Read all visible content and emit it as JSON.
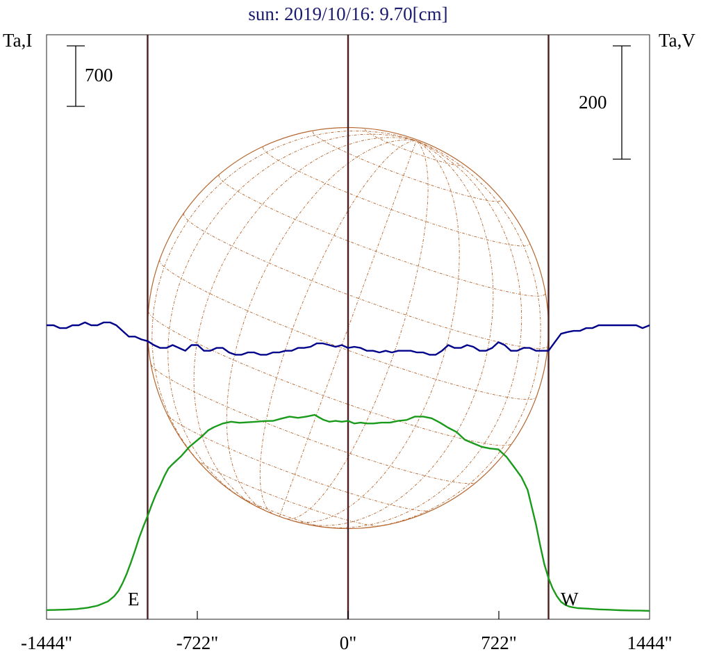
{
  "chart_data": {
    "type": "line",
    "title": "sun: 2019/10/16: 9.70[cm]",
    "left_axis_label": "Ta,I",
    "right_axis_label": "Ta,V",
    "x_unit": "arcsec",
    "xlim": [
      -1444,
      1444
    ],
    "x_tick_values": [
      -1444,
      -722,
      0,
      722,
      1444
    ],
    "x_tick_labels": [
      "-1444\"",
      "-722\"",
      "0\"",
      "722\"",
      "1444\""
    ],
    "scale_bar_left": {
      "label": "700",
      "value": 700
    },
    "scale_bar_right": {
      "label": "200",
      "value": 200
    },
    "marker_lines_x": [
      -960,
      0,
      960
    ],
    "limb_labels": {
      "east": "E",
      "west": "W"
    },
    "solar_radius_arcsec": 960,
    "colors": {
      "stokes_i": "#1a9a1a",
      "stokes_v": "#00008b",
      "markers": "#4a1e1e",
      "sun_disk": "#b5652d",
      "title": "#1a1a6e"
    },
    "series": [
      {
        "key": "stokes_i",
        "x": [
          -1444,
          -1400,
          -1350,
          -1300,
          -1250,
          -1200,
          -1150,
          -1120,
          -1100,
          -1080,
          -1060,
          -1040,
          -1020,
          -1000,
          -980,
          -960,
          -940,
          -920,
          -900,
          -880,
          -860,
          -840,
          -800,
          -760,
          -730,
          -700,
          -670,
          -640,
          -600,
          -560,
          -520,
          -480,
          -440,
          -400,
          -360,
          -320,
          -280,
          -240,
          -200,
          -160,
          -120,
          -90,
          -60,
          -30,
          0,
          30,
          60,
          90,
          120,
          160,
          200,
          240,
          280,
          320,
          360,
          400,
          440,
          480,
          520,
          560,
          600,
          640,
          680,
          720,
          760,
          800,
          830,
          860,
          880,
          900,
          920,
          940,
          960,
          980,
          1000,
          1020,
          1040,
          1060,
          1080,
          1100,
          1120,
          1150,
          1200,
          1250,
          1300,
          1350,
          1400,
          1444
        ],
        "y": [
          10,
          11,
          15,
          22,
          35,
          60,
          110,
          170,
          230,
          320,
          430,
          560,
          700,
          850,
          980,
          1100,
          1230,
          1350,
          1450,
          1560,
          1650,
          1700,
          1790,
          1900,
          1960,
          2020,
          2090,
          2130,
          2170,
          2190,
          2178,
          2184,
          2190,
          2198,
          2200,
          2226,
          2250,
          2235,
          2250,
          2270,
          2215,
          2190,
          2200,
          2190,
          2200,
          2170,
          2180,
          2170,
          2170,
          2180,
          2180,
          2200,
          2210,
          2250,
          2250,
          2230,
          2180,
          2120,
          2070,
          1980,
          1940,
          1900,
          1880,
          1870,
          1780,
          1650,
          1550,
          1400,
          1200,
          1000,
          760,
          540,
          380,
          260,
          170,
          105,
          70,
          50,
          40,
          32,
          30,
          26,
          18,
          14,
          8,
          5,
          3,
          0
        ]
      },
      {
        "key": "stokes_v",
        "x": [
          -1444,
          -1410,
          -1380,
          -1350,
          -1320,
          -1290,
          -1260,
          -1230,
          -1200,
          -1170,
          -1140,
          -1110,
          -1080,
          -1050,
          -1020,
          -990,
          -960,
          -930,
          -900,
          -870,
          -840,
          -810,
          -780,
          -750,
          -720,
          -690,
          -660,
          -630,
          -600,
          -570,
          -540,
          -510,
          -480,
          -450,
          -420,
          -390,
          -360,
          -330,
          -300,
          -270,
          -240,
          -210,
          -180,
          -150,
          -120,
          -90,
          -60,
          -30,
          0,
          30,
          60,
          90,
          120,
          150,
          180,
          210,
          240,
          270,
          300,
          330,
          360,
          390,
          420,
          450,
          480,
          510,
          540,
          570,
          600,
          630,
          660,
          690,
          720,
          750,
          780,
          810,
          840,
          870,
          900,
          930,
          960,
          990,
          1020,
          1050,
          1080,
          1110,
          1140,
          1170,
          1200,
          1230,
          1260,
          1290,
          1320,
          1350,
          1380,
          1410,
          1444
        ],
        "y": [
          0,
          0,
          -5,
          -5,
          0,
          0,
          5,
          0,
          0,
          5,
          5,
          0,
          -10,
          -20,
          -20,
          -25,
          -28,
          -35,
          -40,
          -40,
          -35,
          -40,
          -45,
          -35,
          -35,
          -45,
          -45,
          -40,
          -40,
          -48,
          -52,
          -52,
          -48,
          -48,
          -52,
          -52,
          -48,
          -48,
          -45,
          -45,
          -40,
          -40,
          -38,
          -32,
          -32,
          -35,
          -38,
          -35,
          -40,
          -38,
          -40,
          -45,
          -45,
          -48,
          -45,
          -48,
          -45,
          -45,
          -45,
          -48,
          -48,
          -52,
          -52,
          -45,
          -35,
          -40,
          -40,
          -35,
          -38,
          -45,
          -45,
          -40,
          -30,
          -35,
          -45,
          -45,
          -40,
          -40,
          -45,
          -45,
          -45,
          -30,
          -15,
          -12,
          -10,
          -10,
          -5,
          -5,
          0,
          0,
          0,
          0,
          0,
          0,
          0,
          -5,
          0
        ]
      }
    ]
  }
}
